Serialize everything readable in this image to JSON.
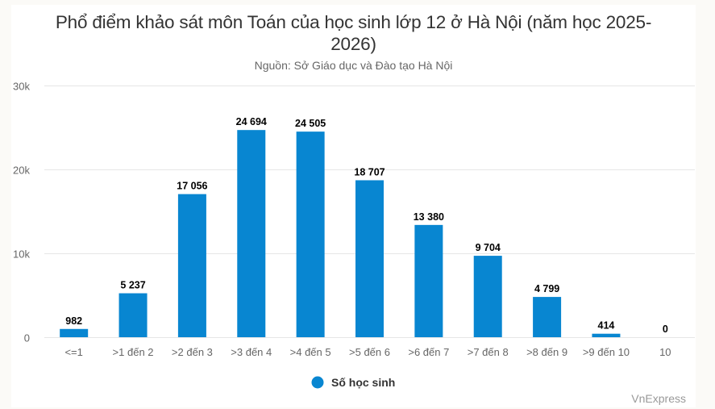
{
  "chart": {
    "title": "Phổ điểm khảo sát môn Toán của học sinh lớp 12 ở Hà Nội (năm học 2025-2026)",
    "subtitle": "Nguồn: Sở Giáo dục và Đào tạo Hà Nội",
    "credit": "VnExpress",
    "bar_color": "#0886d1",
    "legend_label": "Số học sinh"
  },
  "chart_data": {
    "type": "bar",
    "title": "Phổ điểm khảo sát môn Toán của học sinh lớp 12 ở Hà Nội (năm học 2025-2026)",
    "subtitle": "Nguồn: Sở Giáo dục và Đào tạo Hà Nội",
    "xlabel": "",
    "ylabel": "",
    "categories": [
      "<=1",
      ">1 đến 2",
      ">2 đến 3",
      ">3 đến 4",
      ">4 đến 5",
      ">5 đến 6",
      ">6 đến 7",
      ">7 đến 8",
      ">8 đến 9",
      ">9 đến 10",
      "10"
    ],
    "series": [
      {
        "name": "Số học sinh",
        "color": "#0886d1",
        "values": [
          982,
          5237,
          17056,
          24694,
          24505,
          18707,
          13380,
          9704,
          4799,
          414,
          0
        ],
        "data_labels": [
          "982",
          "5 237",
          "17 056",
          "24 694",
          "24 505",
          "18 707",
          "13 380",
          "9 704",
          "4 799",
          "414",
          "0"
        ]
      }
    ],
    "ylim": [
      0,
      30000
    ],
    "yticks": [
      0,
      10000,
      20000,
      30000
    ],
    "ytick_labels": [
      "0",
      "10k",
      "20k",
      "30k"
    ],
    "grid": true,
    "legend_position": "bottom-center"
  }
}
